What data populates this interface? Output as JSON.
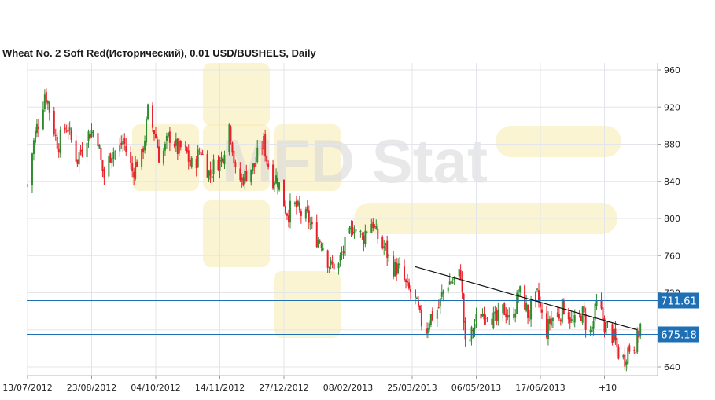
{
  "chart_data": {
    "type": "candlestick",
    "title": "Wheat  No. 2 Soft Red(Исторический), 0.01 USD/BUSHELS, Daily",
    "watermark": "MFD Stat",
    "xlabel": "",
    "ylabel": "",
    "ylim": [
      632,
      962
    ],
    "y_ticks": [
      960,
      920,
      880,
      840,
      800,
      760,
      720,
      680,
      640
    ],
    "x_ticks": [
      "13/07/2012",
      "23/08/2012",
      "04/10/2012",
      "14/11/2012",
      "27/12/2012",
      "08/02/2013",
      "25/03/2013",
      "06/05/2013",
      "17/06/2013",
      "+10"
    ],
    "grid": true,
    "colors": {
      "up": "#2e8b2e",
      "down": "#e8202a",
      "level_line": "#1f6fb5",
      "level_label_bg": "#1f6fb5",
      "trendline": "#111111",
      "watermark": "#f7e9a8"
    },
    "horizontal_levels": [
      {
        "label": "711.61",
        "value": 711.61
      },
      {
        "label": "675.18",
        "value": 675.18
      }
    ],
    "trendline": {
      "start": {
        "date": "2013-03-18",
        "value": 748
      },
      "end": {
        "date": "2013-08-07",
        "value": 680
      }
    },
    "series": [
      {
        "name": "",
        "closes": [
          {
            "date": "2012-07-13",
            "close": 836
          },
          {
            "date": "2012-07-19",
            "close": 900
          },
          {
            "date": "2012-07-24",
            "close": 935
          },
          {
            "date": "2012-07-27",
            "close": 915
          },
          {
            "date": "2012-08-02",
            "close": 880
          },
          {
            "date": "2012-08-08",
            "close": 900
          },
          {
            "date": "2012-08-14",
            "close": 860
          },
          {
            "date": "2012-08-20",
            "close": 895
          },
          {
            "date": "2012-08-27",
            "close": 885
          },
          {
            "date": "2012-08-31",
            "close": 845
          },
          {
            "date": "2012-09-06",
            "close": 875
          },
          {
            "date": "2012-09-12",
            "close": 880
          },
          {
            "date": "2012-09-18",
            "close": 855
          },
          {
            "date": "2012-09-24",
            "close": 862
          },
          {
            "date": "2012-09-28",
            "close": 918
          },
          {
            "date": "2012-10-05",
            "close": 870
          },
          {
            "date": "2012-10-12",
            "close": 885
          },
          {
            "date": "2012-10-19",
            "close": 875
          },
          {
            "date": "2012-10-25",
            "close": 860
          },
          {
            "date": "2012-11-01",
            "close": 870
          },
          {
            "date": "2012-11-07",
            "close": 850
          },
          {
            "date": "2012-11-13",
            "close": 860
          },
          {
            "date": "2012-11-19",
            "close": 900
          },
          {
            "date": "2012-11-23",
            "close": 850
          },
          {
            "date": "2012-11-29",
            "close": 842
          },
          {
            "date": "2012-12-05",
            "close": 860
          },
          {
            "date": "2012-12-11",
            "close": 878
          },
          {
            "date": "2012-12-17",
            "close": 845
          },
          {
            "date": "2012-12-21",
            "close": 835
          },
          {
            "date": "2012-12-27",
            "close": 805
          },
          {
            "date": "2013-01-02",
            "close": 812
          },
          {
            "date": "2013-01-09",
            "close": 795
          },
          {
            "date": "2013-01-15",
            "close": 780
          },
          {
            "date": "2013-01-21",
            "close": 755
          },
          {
            "date": "2013-01-28",
            "close": 745
          },
          {
            "date": "2013-02-01",
            "close": 775
          },
          {
            "date": "2013-02-07",
            "close": 790
          },
          {
            "date": "2013-02-13",
            "close": 782
          },
          {
            "date": "2013-02-19",
            "close": 795
          },
          {
            "date": "2013-02-25",
            "close": 768
          },
          {
            "date": "2013-03-01",
            "close": 760
          },
          {
            "date": "2013-03-07",
            "close": 742
          },
          {
            "date": "2013-03-13",
            "close": 728
          },
          {
            "date": "2013-03-19",
            "close": 702
          },
          {
            "date": "2013-03-25",
            "close": 682
          },
          {
            "date": "2013-03-29",
            "close": 695
          },
          {
            "date": "2013-04-04",
            "close": 715
          },
          {
            "date": "2013-04-10",
            "close": 735
          },
          {
            "date": "2013-04-16",
            "close": 738
          },
          {
            "date": "2013-04-19",
            "close": 665
          },
          {
            "date": "2013-04-25",
            "close": 683
          },
          {
            "date": "2013-05-01",
            "close": 705
          },
          {
            "date": "2013-05-07",
            "close": 688
          },
          {
            "date": "2013-05-13",
            "close": 702
          },
          {
            "date": "2013-05-17",
            "close": 690
          },
          {
            "date": "2013-05-23",
            "close": 718
          },
          {
            "date": "2013-05-29",
            "close": 700
          },
          {
            "date": "2013-06-04",
            "close": 712
          },
          {
            "date": "2013-06-10",
            "close": 683
          },
          {
            "date": "2013-06-14",
            "close": 690
          },
          {
            "date": "2013-06-20",
            "close": 705
          },
          {
            "date": "2013-06-26",
            "close": 688
          },
          {
            "date": "2013-07-02",
            "close": 696
          },
          {
            "date": "2013-07-08",
            "close": 680
          },
          {
            "date": "2013-07-12",
            "close": 702
          },
          {
            "date": "2013-07-18",
            "close": 687
          },
          {
            "date": "2013-07-24",
            "close": 663
          },
          {
            "date": "2013-07-30",
            "close": 650
          },
          {
            "date": "2013-08-05",
            "close": 665
          },
          {
            "date": "2013-08-09",
            "close": 682
          }
        ]
      }
    ]
  }
}
